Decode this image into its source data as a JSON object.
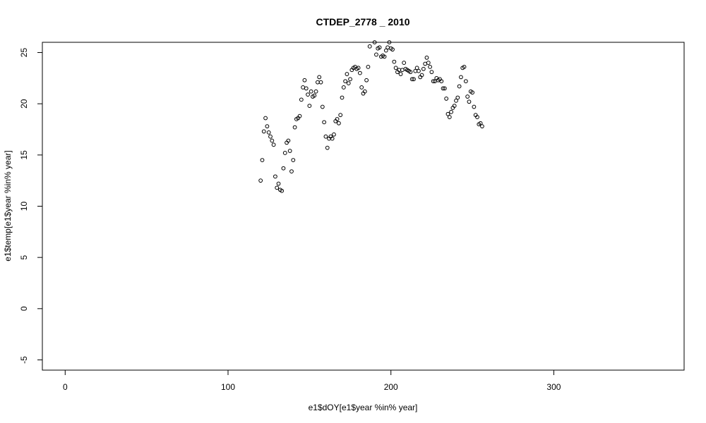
{
  "chart_data": {
    "type": "scatter",
    "title": "CTDEP_2778 _ 2010",
    "xlabel": "e1$dOY[e1$year %in% year]",
    "ylabel": "e1$temp[e1$year %in% year]",
    "xlim": [
      -14,
      380
    ],
    "ylim": [
      -6,
      26
    ],
    "x_ticks": [
      0,
      100,
      200,
      300
    ],
    "y_ticks": [
      -5,
      0,
      5,
      10,
      15,
      20,
      25
    ],
    "grid": false,
    "legend": "none",
    "point_color": "#000000",
    "points": [
      [
        120,
        12.5
      ],
      [
        121,
        14.5
      ],
      [
        122,
        17.3
      ],
      [
        123,
        18.6
      ],
      [
        124,
        17.8
      ],
      [
        125,
        17.2
      ],
      [
        126,
        16.8
      ],
      [
        127,
        16.4
      ],
      [
        128,
        16.0
      ],
      [
        129,
        12.9
      ],
      [
        130,
        11.8
      ],
      [
        131,
        12.2
      ],
      [
        132,
        11.6
      ],
      [
        133,
        11.5
      ],
      [
        134,
        13.7
      ],
      [
        135,
        15.2
      ],
      [
        136,
        16.2
      ],
      [
        137,
        16.4
      ],
      [
        138,
        15.4
      ],
      [
        139,
        13.4
      ],
      [
        140,
        14.5
      ],
      [
        141,
        17.7
      ],
      [
        142,
        18.5
      ],
      [
        143,
        18.6
      ],
      [
        144,
        18.8
      ],
      [
        145,
        20.4
      ],
      [
        146,
        21.6
      ],
      [
        147,
        22.3
      ],
      [
        148,
        21.5
      ],
      [
        149,
        20.9
      ],
      [
        150,
        19.8
      ],
      [
        151,
        21.2
      ],
      [
        152,
        20.7
      ],
      [
        153,
        20.8
      ],
      [
        154,
        21.2
      ],
      [
        155,
        22.1
      ],
      [
        156,
        22.6
      ],
      [
        157,
        22.1
      ],
      [
        158,
        19.7
      ],
      [
        159,
        18.2
      ],
      [
        160,
        16.8
      ],
      [
        161,
        15.7
      ],
      [
        162,
        16.6
      ],
      [
        163,
        16.8
      ],
      [
        164,
        16.6
      ],
      [
        165,
        17.0
      ],
      [
        166,
        18.3
      ],
      [
        167,
        18.5
      ],
      [
        168,
        18.1
      ],
      [
        169,
        18.9
      ],
      [
        170,
        20.6
      ],
      [
        171,
        21.6
      ],
      [
        172,
        22.2
      ],
      [
        173,
        22.9
      ],
      [
        174,
        22.0
      ],
      [
        175,
        22.4
      ],
      [
        176,
        23.3
      ],
      [
        177,
        23.5
      ],
      [
        178,
        23.6
      ],
      [
        179,
        23.4
      ],
      [
        180,
        23.5
      ],
      [
        181,
        23.0
      ],
      [
        182,
        21.6
      ],
      [
        183,
        21.0
      ],
      [
        184,
        21.2
      ],
      [
        185,
        22.3
      ],
      [
        186,
        23.6
      ],
      [
        187,
        25.6
      ],
      [
        190,
        26.0
      ],
      [
        191,
        24.8
      ],
      [
        192,
        25.4
      ],
      [
        193,
        25.5
      ],
      [
        194,
        24.6
      ],
      [
        195,
        24.7
      ],
      [
        196,
        24.6
      ],
      [
        197,
        25.2
      ],
      [
        198,
        25.5
      ],
      [
        199,
        26.0
      ],
      [
        200,
        25.4
      ],
      [
        201,
        25.3
      ],
      [
        202,
        24.1
      ],
      [
        203,
        23.5
      ],
      [
        204,
        23.1
      ],
      [
        205,
        23.3
      ],
      [
        206,
        22.9
      ],
      [
        207,
        23.3
      ],
      [
        208,
        24.0
      ],
      [
        209,
        23.4
      ],
      [
        210,
        23.3
      ],
      [
        211,
        23.2
      ],
      [
        212,
        23.1
      ],
      [
        213,
        22.4
      ],
      [
        214,
        22.4
      ],
      [
        215,
        23.2
      ],
      [
        216,
        23.5
      ],
      [
        217,
        23.2
      ],
      [
        218,
        22.6
      ],
      [
        219,
        22.8
      ],
      [
        220,
        23.4
      ],
      [
        221,
        23.9
      ],
      [
        222,
        24.5
      ],
      [
        223,
        24.0
      ],
      [
        224,
        23.6
      ],
      [
        225,
        23.1
      ],
      [
        226,
        22.2
      ],
      [
        227,
        22.2
      ],
      [
        228,
        22.5
      ],
      [
        229,
        22.3
      ],
      [
        230,
        22.4
      ],
      [
        231,
        22.2
      ],
      [
        232,
        21.5
      ],
      [
        233,
        21.5
      ],
      [
        234,
        20.5
      ],
      [
        235,
        19.0
      ],
      [
        236,
        18.7
      ],
      [
        237,
        19.2
      ],
      [
        238,
        19.6
      ],
      [
        239,
        19.8
      ],
      [
        240,
        20.3
      ],
      [
        241,
        20.6
      ],
      [
        242,
        21.7
      ],
      [
        243,
        22.6
      ],
      [
        244,
        23.5
      ],
      [
        245,
        23.6
      ],
      [
        246,
        22.2
      ],
      [
        247,
        20.7
      ],
      [
        248,
        20.2
      ],
      [
        249,
        21.2
      ],
      [
        250,
        21.1
      ],
      [
        251,
        19.7
      ],
      [
        252,
        18.9
      ],
      [
        253,
        18.7
      ],
      [
        254,
        18.0
      ],
      [
        255,
        18.1
      ],
      [
        256,
        17.8
      ]
    ]
  }
}
